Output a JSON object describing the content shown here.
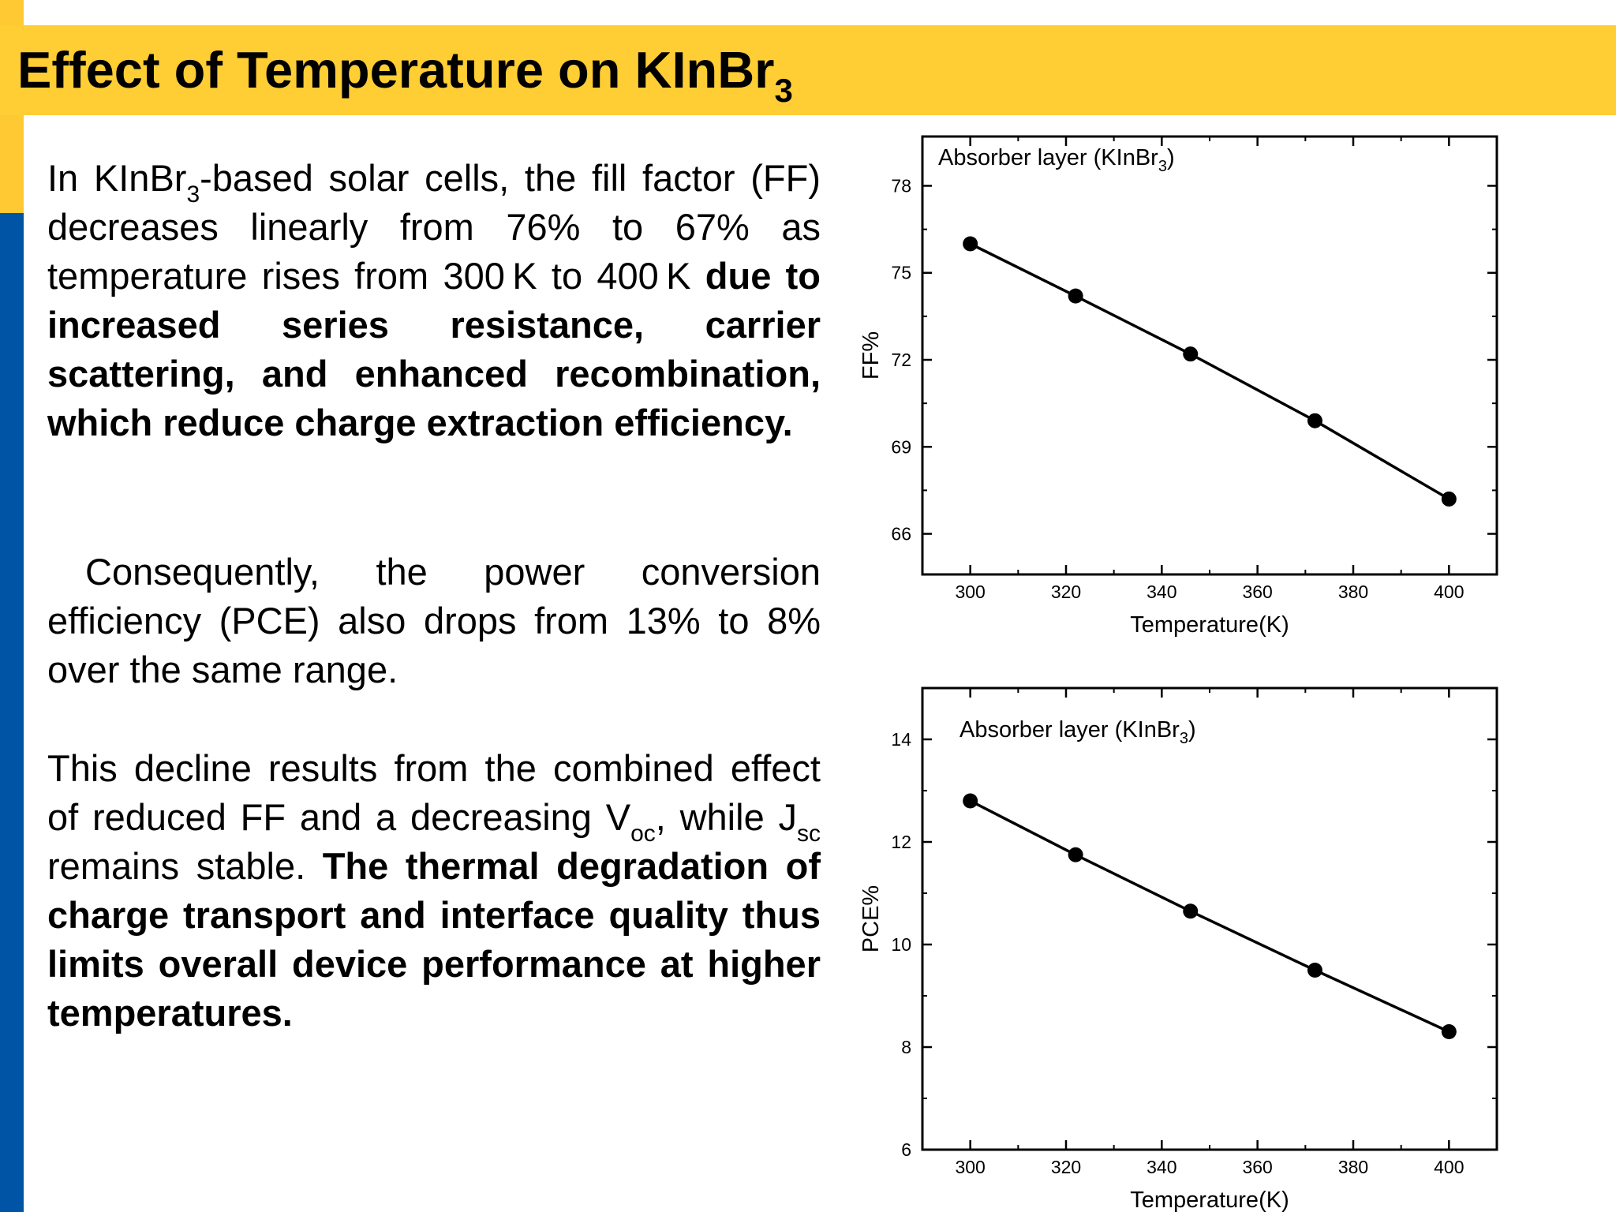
{
  "slide": {
    "title": "Effect of Temperature on KInBr",
    "title_sub": "3",
    "colors": {
      "title_band": "#FFCD34",
      "side_yellow": "#FFC933",
      "side_blue": "#0054A5"
    }
  },
  "paragraphs": {
    "p1": {
      "lead_a": "In KInBr",
      "lead_sub": "3",
      "lead_b": "-based solar cells, the fill factor (FF) decreases linearly from 76% to 67% as temperature rises from 300 K to 400 K ",
      "bold": "due to increased series resistance, carrier scattering, and enhanced recombination, which reduce charge extraction efficiency."
    },
    "p2": {
      "text": "Consequently, the power conversion efficiency (PCE) also drops from 13% to 8% over the same range."
    },
    "p3": {
      "part_a": "This decline results from the combined effect of reduced FF and a decreasing V",
      "voc_sub": "oc",
      "part_b": ", while J",
      "jsc_sub": "sc",
      "part_c": " remains stable. ",
      "bold": "The thermal degradation of charge transport and interface quality thus limits overall device performance at higher temperatures."
    }
  },
  "chart_data": [
    {
      "type": "line",
      "annotation": "Absorber layer (KInBr",
      "annotation_sub": "3",
      "annotation_close": ")",
      "xlabel": "Temperature(K)",
      "ylabel": "FF%",
      "xlim": [
        290,
        410
      ],
      "ylim": [
        64.6,
        79.7
      ],
      "xticks": [
        300,
        320,
        340,
        360,
        380,
        400
      ],
      "yticks": [
        66,
        69,
        72,
        75,
        78
      ],
      "x": [
        300,
        322,
        346,
        372,
        400
      ],
      "values": [
        76.0,
        74.2,
        72.2,
        69.9,
        67.2
      ],
      "marker": "circle",
      "grid": false
    },
    {
      "type": "line",
      "annotation": "Absorber layer (KInBr",
      "annotation_sub": "3",
      "annotation_close": ")",
      "xlabel": "Temperature(K)",
      "ylabel": "PCE%",
      "xlim": [
        290,
        410
      ],
      "ylim": [
        6,
        15
      ],
      "xticks": [
        300,
        320,
        340,
        360,
        380,
        400
      ],
      "yticks": [
        6,
        8,
        10,
        12,
        14
      ],
      "x": [
        300,
        322,
        346,
        372,
        400
      ],
      "values": [
        12.8,
        11.75,
        10.65,
        9.5,
        8.3
      ],
      "marker": "circle",
      "grid": false
    }
  ]
}
